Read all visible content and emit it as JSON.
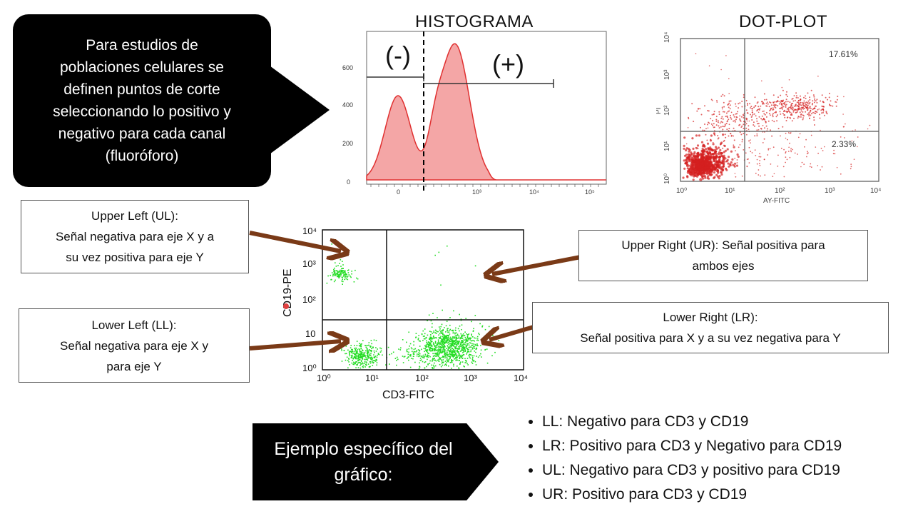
{
  "callout": {
    "text": "Para estudios de\npoblaciones celulares se\ndefinen puntos de corte\nseleccionando lo positivo y\nnegativo para cada canal\n(fluoróforo)"
  },
  "histogram": {
    "title": "HISTOGRAMA",
    "neg_label": "(-)",
    "pos_label": "(+)",
    "y_ticks": [
      "600",
      "400",
      "200",
      "0"
    ],
    "x_ticks": [
      "0",
      "10³",
      "10⁴",
      "10⁵"
    ],
    "fill_color": "#f4a6a6",
    "line_color": "#e03030"
  },
  "dotplot": {
    "title": "DOT-PLOT",
    "ur_percent": "17.61%",
    "lr_percent": "2.33%",
    "ylabel": "PI",
    "xlabel": "AY-FITC",
    "y_ticks": [
      "10⁴",
      "10³",
      "10²",
      "10¹",
      "10⁰"
    ],
    "x_ticks": [
      "10⁰",
      "10¹",
      "10²",
      "10³",
      "10⁴"
    ],
    "dot_color": "#d42020"
  },
  "quadrant_plot": {
    "xlabel": "CD3-FITC",
    "ylabel": "CD19-PE",
    "y_ticks": [
      "10⁴",
      "10³",
      "10²",
      "10",
      "10⁰"
    ],
    "x_ticks": [
      "10⁰",
      "10¹",
      "10²",
      "10³",
      "10⁴"
    ],
    "dot_color": "#22dd22"
  },
  "quadrant_notes": {
    "ul": "Upper Left (UL):\nSeñal negativa para eje X y a\nsu vez positiva para eje Y",
    "ur": "Upper Right (UR): Señal positiva para\nambos ejes",
    "ll": "Lower Left (LL):\nSeñal negativa para eje X y\npara eje Y",
    "lr": "Lower Right (LR):\nSeñal positiva para X y a su vez negativa para Y"
  },
  "arrow_color": "#7a3a17",
  "example": {
    "label": "Ejemplo específico del\ngráfico:"
  },
  "summary": [
    "LL: Negativo para CD3 y CD19",
    "LR: Positivo para CD3 y Negativo para CD19",
    "UL: Negativo para CD3 y positivo para CD19",
    "UR: Positivo para CD3 y CD19"
  ]
}
